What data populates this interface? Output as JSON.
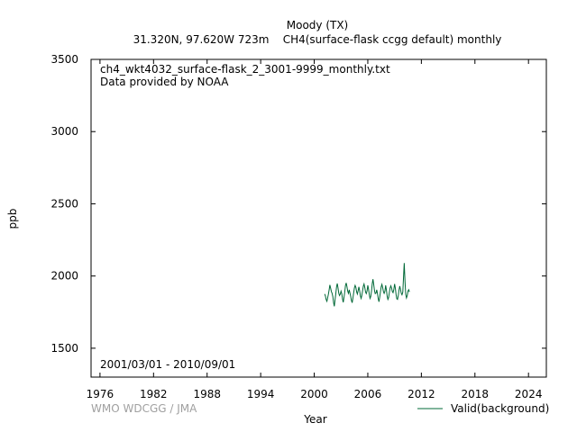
{
  "chart_data": {
    "type": "line",
    "title": "Moody (TX)",
    "subtitle": "31.320N, 97.620W 723m    CH4(surface-flask ccgg default) monthly",
    "file_label": "ch4_wkt4032_surface-flask_2_3001-9999_monthly.txt",
    "provider": "Data provided by NOAA",
    "date_range": "2001/03/01 - 2010/09/01",
    "credit": "WMO WDCGG / JMA",
    "xlabel": "Year",
    "ylabel": "ppb",
    "xlim": [
      1975,
      2026
    ],
    "ylim": [
      1300,
      3500
    ],
    "xticks": [
      1976,
      1982,
      1988,
      1994,
      2000,
      2006,
      2012,
      2018,
      2024
    ],
    "yticks": [
      1500,
      2000,
      2500,
      3000,
      3500
    ],
    "grid": false,
    "legend_position": "bottom-right",
    "series": [
      {
        "name": "Valid(background)",
        "color": "#006837",
        "x": [
          2001.17,
          2001.25,
          2001.33,
          2001.42,
          2001.5,
          2001.58,
          2001.67,
          2001.75,
          2001.83,
          2001.92,
          2002.0,
          2002.08,
          2002.17,
          2002.25,
          2002.33,
          2002.42,
          2002.5,
          2002.58,
          2002.67,
          2002.75,
          2002.83,
          2002.92,
          2003.0,
          2003.08,
          2003.17,
          2003.25,
          2003.33,
          2003.42,
          2003.5,
          2003.58,
          2003.67,
          2003.75,
          2003.83,
          2003.92,
          2004.0,
          2004.08,
          2004.17,
          2004.25,
          2004.33,
          2004.42,
          2004.5,
          2004.58,
          2004.67,
          2004.75,
          2004.83,
          2004.92,
          2005.0,
          2005.08,
          2005.17,
          2005.25,
          2005.33,
          2005.42,
          2005.5,
          2005.58,
          2005.67,
          2005.75,
          2005.83,
          2005.92,
          2006.0,
          2006.08,
          2006.17,
          2006.25,
          2006.33,
          2006.42,
          2006.5,
          2006.58,
          2006.67,
          2006.75,
          2006.83,
          2006.92,
          2007.0,
          2007.08,
          2007.17,
          2007.25,
          2007.33,
          2007.42,
          2007.5,
          2007.58,
          2007.67,
          2007.75,
          2007.83,
          2007.92,
          2008.0,
          2008.08,
          2008.17,
          2008.25,
          2008.33,
          2008.42,
          2008.5,
          2008.58,
          2008.67,
          2008.75,
          2008.83,
          2008.92,
          2009.0,
          2009.08,
          2009.17,
          2009.25,
          2009.33,
          2009.42,
          2009.5,
          2009.58,
          2009.67,
          2009.75,
          2009.83,
          2009.92,
          2010.0,
          2010.08,
          2010.17,
          2010.25,
          2010.33,
          2010.42,
          2010.5,
          2010.58,
          2010.67
        ],
        "y": [
          1875,
          1862,
          1838,
          1825,
          1848,
          1872,
          1905,
          1938,
          1918,
          1892,
          1880,
          1858,
          1815,
          1790,
          1835,
          1880,
          1925,
          1948,
          1915,
          1880,
          1865,
          1875,
          1895,
          1878,
          1840,
          1818,
          1850,
          1890,
          1935,
          1952,
          1925,
          1895,
          1880,
          1905,
          1882,
          1860,
          1830,
          1815,
          1845,
          1885,
          1918,
          1935,
          1920,
          1890,
          1875,
          1900,
          1925,
          1900,
          1862,
          1845,
          1865,
          1900,
          1930,
          1945,
          1918,
          1888,
          1878,
          1898,
          1935,
          1910,
          1870,
          1845,
          1858,
          1898,
          1948,
          1978,
          1938,
          1898,
          1878,
          1882,
          1905,
          1880,
          1842,
          1822,
          1852,
          1892,
          1925,
          1942,
          1918,
          1892,
          1880,
          1895,
          1935,
          1905,
          1860,
          1838,
          1850,
          1888,
          1918,
          1932,
          1915,
          1892,
          1885,
          1908,
          1945,
          1918,
          1870,
          1842,
          1838,
          1868,
          1905,
          1930,
          1905,
          1880,
          1870,
          1888,
          1990,
          2090,
          1960,
          1872,
          1848,
          1865,
          1895,
          1905,
          1890
        ]
      }
    ]
  }
}
